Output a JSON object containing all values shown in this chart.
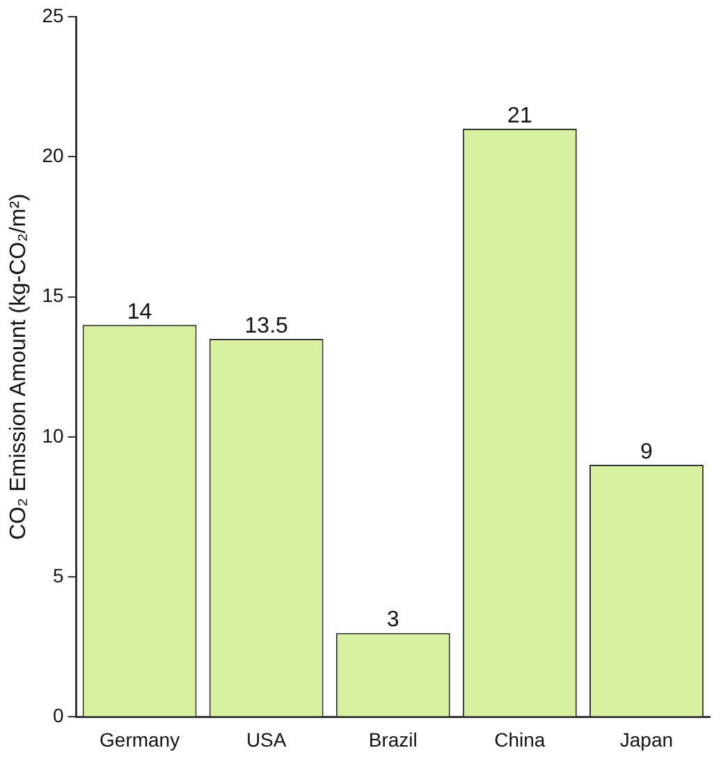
{
  "chart_data": {
    "type": "bar",
    "ylabel": "CO₂ Emission Amount (kg-CO₂/m²)",
    "categories": [
      "Germany",
      "USA",
      "Brazil",
      "China",
      "Japan"
    ],
    "values": [
      14,
      13.5,
      3,
      21,
      9
    ],
    "color": "#d6f0a0",
    "ylim": [
      0,
      25
    ],
    "yticks": [
      0,
      5,
      10,
      15,
      20,
      25
    ],
    "grid": false,
    "legend": false,
    "data_labels": true
  }
}
